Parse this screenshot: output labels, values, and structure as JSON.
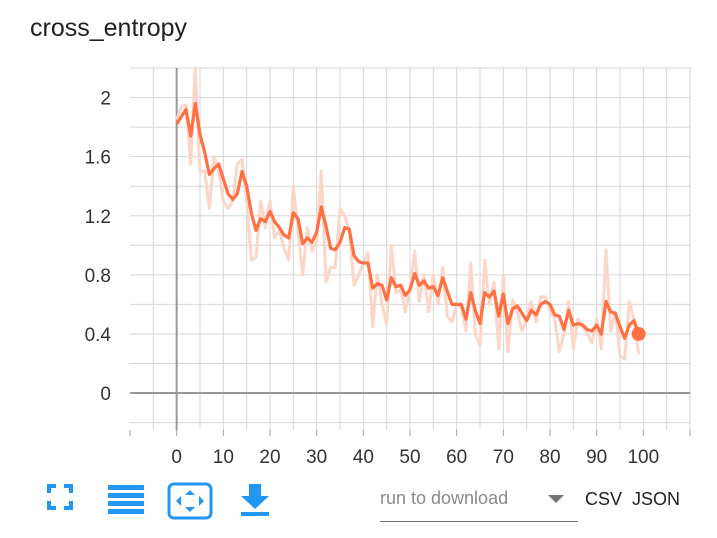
{
  "title": "cross_entropy",
  "chart_data": {
    "type": "line",
    "title": "cross_entropy",
    "xlabel": "",
    "ylabel": "",
    "xlim": [
      -10,
      110
    ],
    "ylim": [
      -0.25,
      2.2
    ],
    "x_ticks": [
      "0",
      "10",
      "20",
      "30",
      "40",
      "50",
      "60",
      "70",
      "80",
      "90",
      "100"
    ],
    "x_tick_values": [
      0,
      10,
      20,
      30,
      40,
      50,
      60,
      70,
      80,
      90,
      100
    ],
    "y_ticks": [
      "0",
      "0.4",
      "0.8",
      "1.2",
      "1.6",
      "2"
    ],
    "y_tick_values": [
      0,
      0.4,
      0.8,
      1.2,
      1.6,
      2
    ],
    "grid": true,
    "colors": {
      "smoothed": "#ff7043",
      "raw": "#fcd6c8",
      "axis": "#999999",
      "grid": "#d6d6d6"
    },
    "series": [
      {
        "role": "smoothed",
        "x": [
          0,
          1,
          2,
          3,
          4,
          5,
          6,
          7,
          8,
          9,
          10,
          11,
          12,
          13,
          14,
          15,
          16,
          17,
          18,
          19,
          20,
          21,
          22,
          23,
          24,
          25,
          26,
          27,
          28,
          29,
          30,
          31,
          32,
          33,
          34,
          35,
          36,
          37,
          38,
          39,
          40,
          41,
          42,
          43,
          44,
          45,
          46,
          47,
          48,
          49,
          50,
          51,
          52,
          53,
          54,
          55,
          56,
          57,
          58,
          59,
          60,
          61,
          62,
          63,
          64,
          65,
          66,
          67,
          68,
          69,
          70,
          71,
          72,
          73,
          74,
          75,
          76,
          77,
          78,
          79,
          80,
          81,
          82,
          83,
          84,
          85,
          86,
          87,
          88,
          89,
          90,
          91,
          92,
          93,
          94,
          95,
          96,
          97,
          98,
          99
        ],
        "y": [
          1.82,
          1.87,
          1.92,
          1.74,
          1.96,
          1.75,
          1.63,
          1.48,
          1.52,
          1.55,
          1.45,
          1.35,
          1.31,
          1.35,
          1.5,
          1.4,
          1.22,
          1.1,
          1.18,
          1.16,
          1.23,
          1.16,
          1.12,
          1.07,
          1.05,
          1.22,
          1.18,
          1.01,
          1.05,
          1.02,
          1.09,
          1.26,
          1.13,
          0.98,
          0.97,
          1.02,
          1.12,
          1.11,
          0.93,
          0.89,
          0.88,
          0.88,
          0.71,
          0.74,
          0.73,
          0.63,
          0.78,
          0.72,
          0.73,
          0.66,
          0.7,
          0.81,
          0.73,
          0.76,
          0.71,
          0.72,
          0.66,
          0.78,
          0.69,
          0.6,
          0.6,
          0.6,
          0.5,
          0.68,
          0.56,
          0.47,
          0.68,
          0.65,
          0.69,
          0.52,
          0.67,
          0.47,
          0.57,
          0.59,
          0.54,
          0.49,
          0.56,
          0.53,
          0.6,
          0.62,
          0.6,
          0.53,
          0.52,
          0.43,
          0.56,
          0.46,
          0.47,
          0.46,
          0.43,
          0.42,
          0.46,
          0.4,
          0.62,
          0.55,
          0.54,
          0.45,
          0.37,
          0.46,
          0.49,
          0.4
        ]
      },
      {
        "role": "raw",
        "x": [
          0,
          1,
          2,
          3,
          4,
          5,
          6,
          7,
          8,
          9,
          10,
          11,
          12,
          13,
          14,
          15,
          16,
          17,
          18,
          19,
          20,
          21,
          22,
          23,
          24,
          25,
          26,
          27,
          28,
          29,
          30,
          31,
          32,
          33,
          34,
          35,
          36,
          37,
          38,
          39,
          40,
          41,
          42,
          43,
          44,
          45,
          46,
          47,
          48,
          49,
          50,
          51,
          52,
          53,
          54,
          55,
          56,
          57,
          58,
          59,
          60,
          61,
          62,
          63,
          64,
          65,
          66,
          67,
          68,
          69,
          70,
          71,
          72,
          73,
          74,
          75,
          76,
          77,
          78,
          79,
          80,
          81,
          82,
          83,
          84,
          85,
          86,
          87,
          88,
          89,
          90,
          91,
          92,
          93,
          94,
          95,
          96,
          97,
          98,
          99
        ],
        "y": [
          1.85,
          1.94,
          1.95,
          1.55,
          2.2,
          1.5,
          1.5,
          1.25,
          1.6,
          1.5,
          1.3,
          1.25,
          1.3,
          1.55,
          1.58,
          1.3,
          0.9,
          0.92,
          1.3,
          1.12,
          1.3,
          1.05,
          1.1,
          0.98,
          0.9,
          1.4,
          1.1,
          0.8,
          1.12,
          0.96,
          1.02,
          1.5,
          0.75,
          0.85,
          0.85,
          1.25,
          1.2,
          1.1,
          0.73,
          0.8,
          0.88,
          0.95,
          0.45,
          0.8,
          0.6,
          0.47,
          1.0,
          0.68,
          0.7,
          0.55,
          0.7,
          0.96,
          0.62,
          0.8,
          0.55,
          0.8,
          0.6,
          0.85,
          0.52,
          0.48,
          0.6,
          0.58,
          0.42,
          0.88,
          0.4,
          0.32,
          0.9,
          0.6,
          0.75,
          0.3,
          0.8,
          0.28,
          0.63,
          0.55,
          0.42,
          0.5,
          0.62,
          0.48,
          0.65,
          0.65,
          0.56,
          0.5,
          0.28,
          0.4,
          0.62,
          0.3,
          0.5,
          0.45,
          0.4,
          0.34,
          0.5,
          0.3,
          0.97,
          0.42,
          0.55,
          0.25,
          0.23,
          0.62,
          0.5,
          0.26
        ]
      }
    ]
  },
  "toolbar": {
    "run_placeholder": "run to download",
    "csv_label": "CSV",
    "json_label": "JSON"
  }
}
